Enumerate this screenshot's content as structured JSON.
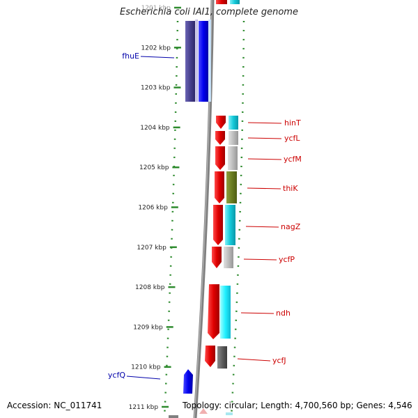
{
  "header": {
    "title": "Escherichia coli IAI1, complete genome"
  },
  "footer": {
    "accession": "Accession: NC_011741",
    "summary": "Topology: circular; Length: 4,700,560 bp; Genes: 4,546"
  },
  "ruler": {
    "ticks": [
      "1201 kbp",
      "1202 kbp",
      "1203 kbp",
      "1204 kbp",
      "1205 kbp",
      "1206 kbp",
      "1207 kbp",
      "1208 kbp",
      "1209 kbp",
      "1210 kbp",
      "1211 kbp"
    ]
  },
  "genes": [
    {
      "name": "fhuE",
      "strand": "reverse",
      "color": "#1a1aff"
    },
    {
      "name": "hinT",
      "strand": "forward",
      "color": "#e00000"
    },
    {
      "name": "ycfL",
      "strand": "forward",
      "color": "#e00000"
    },
    {
      "name": "ycfM",
      "strand": "forward",
      "color": "#e00000"
    },
    {
      "name": "thiK",
      "strand": "forward",
      "color": "#e00000"
    },
    {
      "name": "nagZ",
      "strand": "forward",
      "color": "#e00000"
    },
    {
      "name": "ycfP",
      "strand": "forward",
      "color": "#e00000"
    },
    {
      "name": "ndh",
      "strand": "forward",
      "color": "#e00000"
    },
    {
      "name": "ycfJ",
      "strand": "forward",
      "color": "#e00000"
    },
    {
      "name": "ycfQ",
      "strand": "reverse",
      "color": "#1a1aff"
    }
  ],
  "colors": {
    "forward_label": "#cc0000",
    "reverse_label": "#0000aa",
    "tick_green": "#2e8b2e",
    "backbone": "#808080"
  }
}
